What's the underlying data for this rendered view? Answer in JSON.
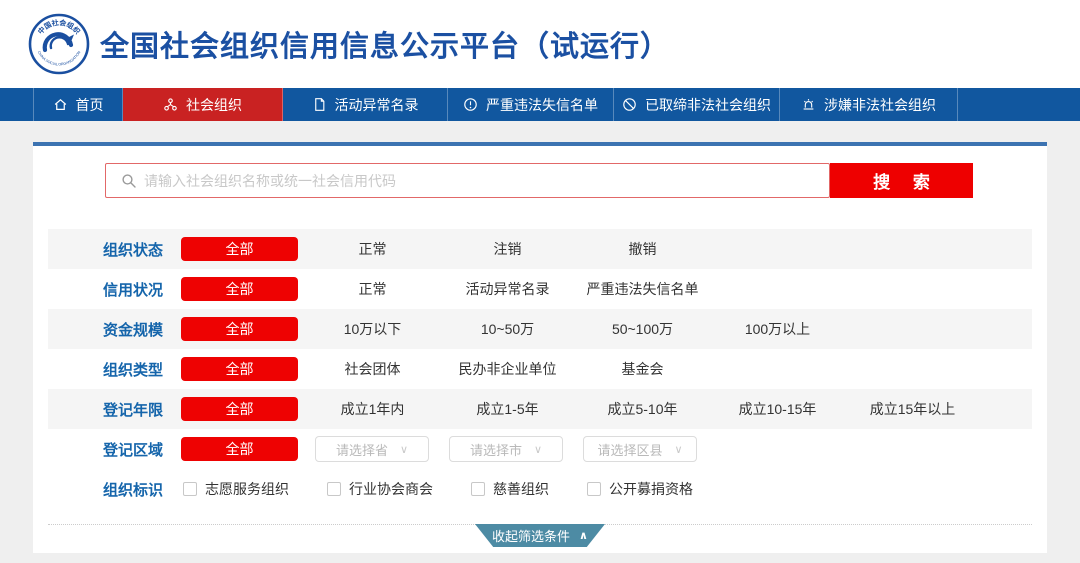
{
  "header": {
    "title": "全国社会组织信用信息公示平台（试运行）",
    "logo": {
      "top_text": "中国社会组织",
      "bottom_text": "CHINA SOCIAL ORGANIZATION"
    }
  },
  "nav": {
    "items": [
      {
        "name": "home",
        "icon": "home-icon",
        "label": "首页",
        "active": false
      },
      {
        "name": "social-orgs",
        "icon": "org-icon",
        "label": "社会组织",
        "active": true
      },
      {
        "name": "abnormal-list",
        "icon": "document-icon",
        "label": "活动异常名录",
        "active": false
      },
      {
        "name": "dishonest-list",
        "icon": "warning-icon",
        "label": "严重违法失信名单",
        "active": false
      },
      {
        "name": "banned-orgs",
        "icon": "ban-icon",
        "label": "已取缔非法社会组织",
        "active": false
      },
      {
        "name": "suspected-orgs",
        "icon": "alarm-icon",
        "label": "涉嫌非法社会组织",
        "active": false
      }
    ]
  },
  "search": {
    "placeholder": "请输入社会组织名称或统一社会信用代码",
    "button_label": "搜 索"
  },
  "filters": [
    {
      "name": "org-status",
      "label": "组织状态",
      "selected": "全部",
      "options": [
        "正常",
        "注销",
        "撤销"
      ],
      "shaded": true
    },
    {
      "name": "credit-status",
      "label": "信用状况",
      "selected": "全部",
      "options": [
        "正常",
        "活动异常名录",
        "严重违法失信名单"
      ],
      "shaded": false
    },
    {
      "name": "fund-scale",
      "label": "资金规模",
      "selected": "全部",
      "options": [
        "10万以下",
        "10~50万",
        "50~100万",
        "100万以上"
      ],
      "shaded": true
    },
    {
      "name": "org-type",
      "label": "组织类型",
      "selected": "全部",
      "options": [
        "社会团体",
        "民办非企业单位",
        "基金会"
      ],
      "shaded": false
    },
    {
      "name": "reg-years",
      "label": "登记年限",
      "selected": "全部",
      "options": [
        "成立1年内",
        "成立1-5年",
        "成立5-10年",
        "成立10-15年",
        "成立15年以上"
      ],
      "shaded": true
    },
    {
      "name": "reg-region",
      "label": "登记区域",
      "selected": "全部",
      "dropdowns": [
        "请选择省",
        "请选择市",
        "请选择区县"
      ],
      "shaded": false
    },
    {
      "name": "org-tags",
      "label": "组织标识",
      "checkboxes": [
        "志愿服务组织",
        "行业协会商会",
        "慈善组织",
        "公开募捐资格"
      ],
      "shaded": false
    }
  ],
  "footer": {
    "collapse_label": "收起筛选条件"
  },
  "colors": {
    "brand_blue": "#1b50a2",
    "nav_blue": "#11579f",
    "active_tab_red": "#c92222",
    "accent_red": "#ee0202",
    "label_blue": "#1565ab",
    "collapse_teal": "#4d8ba4",
    "shaded_row": "#f5f5f5",
    "page_bg": "#efefef"
  }
}
